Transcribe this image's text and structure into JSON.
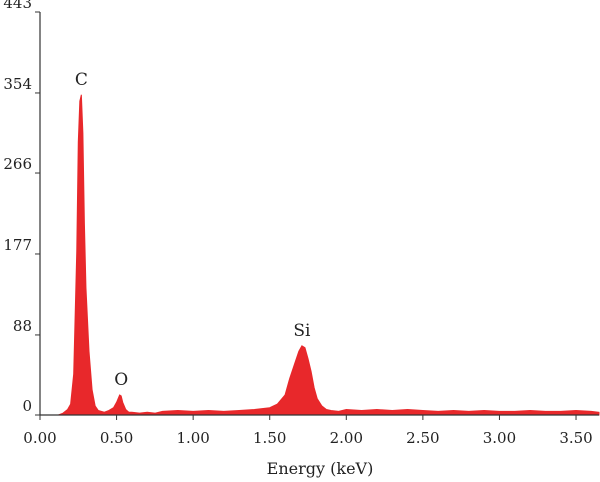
{
  "chart_data": {
    "type": "area",
    "title": "",
    "xlabel": "Energy (keV)",
    "ylabel": "",
    "xlim": [
      0,
      3.65
    ],
    "ylim": [
      0,
      443
    ],
    "x_ticks": [
      "0.00",
      "0.50",
      "1.00",
      "1.50",
      "2.00",
      "2.50",
      "3.00",
      "3.50"
    ],
    "x_tick_values": [
      0,
      0.5,
      1.0,
      1.5,
      2.0,
      2.5,
      3.0,
      3.5
    ],
    "y_ticks": [
      "0",
      "88",
      "177",
      "266",
      "354",
      "443"
    ],
    "y_tick_values": [
      0,
      88,
      177,
      266,
      354,
      443
    ],
    "grid": false,
    "color": "#e8282b",
    "series": [
      {
        "x": [
          0.12,
          0.15,
          0.18,
          0.2,
          0.22,
          0.24,
          0.25,
          0.26,
          0.27,
          0.28,
          0.29,
          0.3,
          0.32,
          0.34,
          0.36,
          0.38,
          0.4,
          0.42,
          0.45,
          0.48,
          0.5,
          0.52,
          0.53,
          0.54,
          0.56,
          0.58,
          0.6,
          0.65,
          0.7,
          0.75,
          0.8,
          0.9,
          1.0,
          1.1,
          1.2,
          1.3,
          1.4,
          1.5,
          1.55,
          1.6,
          1.63,
          1.66,
          1.69,
          1.71,
          1.73,
          1.75,
          1.77,
          1.79,
          1.81,
          1.84,
          1.87,
          1.9,
          1.95,
          2.0,
          2.1,
          2.2,
          2.3,
          2.4,
          2.5,
          2.6,
          2.7,
          2.8,
          2.9,
          3.0,
          3.1,
          3.2,
          3.3,
          3.4,
          3.5,
          3.6,
          3.65
        ],
        "y": [
          0,
          2,
          6,
          12,
          45,
          180,
          300,
          345,
          352,
          310,
          210,
          140,
          70,
          28,
          10,
          5,
          4,
          3,
          5,
          8,
          14,
          22,
          21,
          14,
          6,
          3,
          3,
          2,
          3,
          2,
          4,
          5,
          4,
          5,
          4,
          5,
          6,
          8,
          12,
          22,
          40,
          55,
          70,
          76,
          74,
          62,
          48,
          30,
          18,
          10,
          6,
          5,
          4,
          6,
          5,
          6,
          5,
          6,
          5,
          4,
          5,
          4,
          5,
          4,
          4,
          5,
          4,
          4,
          5,
          4,
          3
        ]
      }
    ],
    "annotations": [
      {
        "text": "C",
        "x": 0.27,
        "y": 352
      },
      {
        "text": "O",
        "x": 0.53,
        "y": 22
      },
      {
        "text": "Si",
        "x": 1.71,
        "y": 76
      }
    ]
  }
}
